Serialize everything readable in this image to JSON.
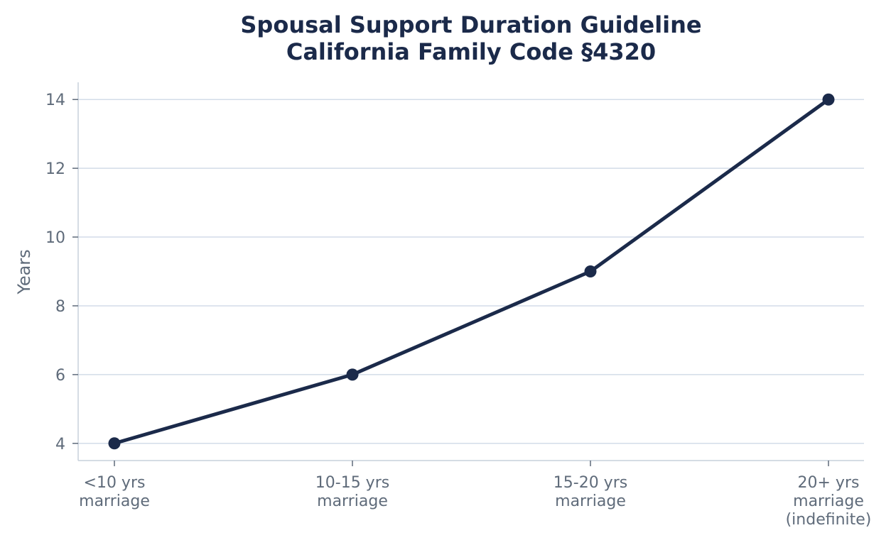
{
  "chart_data": {
    "type": "line",
    "title_lines": [
      "Spousal Support Duration Guideline",
      "California Family Code §4320"
    ],
    "xlabel": "",
    "ylabel": "Years",
    "categories": [
      [
        "<10 yrs",
        "marriage"
      ],
      [
        "10-15 yrs",
        "marriage"
      ],
      [
        "15-20 yrs",
        "marriage"
      ],
      [
        "20+ yrs",
        "marriage",
        "(indefinite)"
      ]
    ],
    "series": [
      {
        "values": [
          4,
          6,
          9,
          14
        ]
      }
    ],
    "yticks": [
      4,
      6,
      8,
      10,
      12,
      14
    ],
    "ylim": [
      3.5,
      14.5
    ],
    "grid": "horizontal",
    "legend": "none",
    "colors": {
      "line": "#1b2a4a",
      "grid": "#d3dce8",
      "axis": "#c7d0dc",
      "text": "#5f6b7a",
      "title": "#1b2a4a"
    }
  }
}
